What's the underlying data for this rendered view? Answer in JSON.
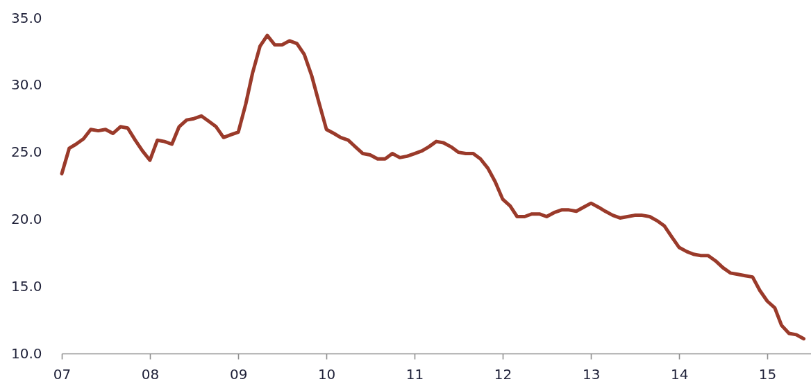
{
  "chart_data": {
    "type": "line",
    "x": [
      "2007-01",
      "2007-02",
      "2007-03",
      "2007-04",
      "2007-05",
      "2007-06",
      "2007-07",
      "2007-08",
      "2007-09",
      "2007-10",
      "2007-11",
      "2007-12",
      "2008-01",
      "2008-02",
      "2008-03",
      "2008-04",
      "2008-05",
      "2008-06",
      "2008-07",
      "2008-08",
      "2008-09",
      "2008-10",
      "2008-11",
      "2008-12",
      "2009-01",
      "2009-02",
      "2009-03",
      "2009-04",
      "2009-05",
      "2009-06",
      "2009-07",
      "2009-08",
      "2009-09",
      "2009-10",
      "2009-11",
      "2009-12",
      "2010-01",
      "2010-02",
      "2010-03",
      "2010-04",
      "2010-05",
      "2010-06",
      "2010-07",
      "2010-08",
      "2010-09",
      "2010-10",
      "2010-11",
      "2010-12",
      "2011-01",
      "2011-02",
      "2011-03",
      "2011-04",
      "2011-05",
      "2011-06",
      "2011-07",
      "2011-08",
      "2011-09",
      "2011-10",
      "2011-11",
      "2011-12",
      "2012-01",
      "2012-02",
      "2012-03",
      "2012-04",
      "2012-05",
      "2012-06",
      "2012-07",
      "2012-08",
      "2012-09",
      "2012-10",
      "2012-11",
      "2012-12",
      "2013-01",
      "2013-02",
      "2013-03",
      "2013-04",
      "2013-05",
      "2013-06",
      "2013-07",
      "2013-08",
      "2013-09",
      "2013-10",
      "2013-11",
      "2013-12",
      "2014-01",
      "2014-02",
      "2014-03",
      "2014-04",
      "2014-05",
      "2014-06",
      "2014-07",
      "2014-08",
      "2014-09",
      "2014-10",
      "2014-11",
      "2014-12",
      "2015-01",
      "2015-02",
      "2015-03",
      "2015-04",
      "2015-05",
      "2015-06"
    ],
    "series": [
      {
        "color": "#9a3a2a",
        "values": [
          23.4,
          25.3,
          25.6,
          26.0,
          26.7,
          26.6,
          26.7,
          26.4,
          26.9,
          26.8,
          25.9,
          25.1,
          24.4,
          25.9,
          25.8,
          25.6,
          26.9,
          27.4,
          27.5,
          27.7,
          27.3,
          26.9,
          26.1,
          26.3,
          26.5,
          28.6,
          30.9,
          32.9,
          33.7,
          33.0,
          33.0,
          33.3,
          33.1,
          32.3,
          30.7,
          28.7,
          26.7,
          26.4,
          26.1,
          25.9,
          25.4,
          24.9,
          24.8,
          24.5,
          24.5,
          24.9,
          24.6,
          24.7,
          24.9,
          25.1,
          25.4,
          25.8,
          25.7,
          25.4,
          25.0,
          24.9,
          24.9,
          24.5,
          23.8,
          22.8,
          21.5,
          21.0,
          20.2,
          20.2,
          20.4,
          20.4,
          20.2,
          20.5,
          20.7,
          20.7,
          20.6,
          20.9,
          21.2,
          20.9,
          20.6,
          20.3,
          20.1,
          20.2,
          20.3,
          20.3,
          20.2,
          19.9,
          19.5,
          18.7,
          17.9,
          17.6,
          17.4,
          17.3,
          17.3,
          16.9,
          16.4,
          16.0,
          15.9,
          15.8,
          15.7,
          14.7,
          13.9,
          13.4,
          12.1,
          11.5,
          11.4,
          11.1
        ]
      }
    ],
    "xlim": [
      "2007-01",
      "2015-07"
    ],
    "xticks": [
      {
        "value": "2007",
        "label": "07"
      },
      {
        "value": "2008",
        "label": "08"
      },
      {
        "value": "2009",
        "label": "09"
      },
      {
        "value": "2010",
        "label": "10"
      },
      {
        "value": "2011",
        "label": "11"
      },
      {
        "value": "2012",
        "label": "12"
      },
      {
        "value": "2013",
        "label": "13"
      },
      {
        "value": "2014",
        "label": "14"
      },
      {
        "value": "2015",
        "label": "15"
      }
    ],
    "ylim": [
      10,
      35
    ],
    "yticks": [
      {
        "value": 10,
        "label": "10.0"
      },
      {
        "value": 15,
        "label": "15.0"
      },
      {
        "value": 20,
        "label": "20.0"
      },
      {
        "value": 25,
        "label": "25.0"
      },
      {
        "value": 30,
        "label": "30.0"
      },
      {
        "value": 35,
        "label": "35.0"
      }
    ],
    "line_style": "solid",
    "grid": false
  }
}
